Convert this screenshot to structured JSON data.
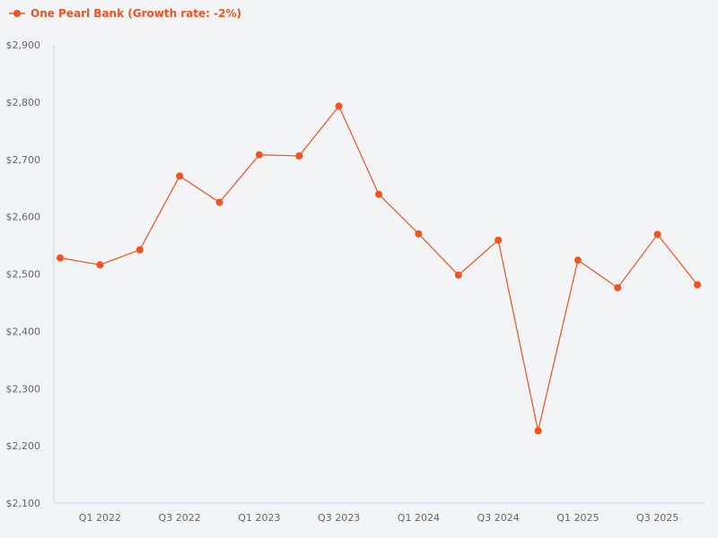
{
  "legend": {
    "label": "One Pearl Bank (Growth rate: -2%)",
    "color": "#f4511e"
  },
  "chart_data": {
    "type": "line",
    "title": "",
    "xlabel": "",
    "ylabel": "",
    "categories": [
      "Q4 2021",
      "Q1 2022",
      "Q2 2022",
      "Q3 2022",
      "Q4 2022",
      "Q1 2023",
      "Q2 2023",
      "Q3 2023",
      "Q4 2023",
      "Q1 2024",
      "Q2 2024",
      "Q3 2024",
      "Q4 2024",
      "Q1 2025",
      "Q2 2025",
      "Q3 2025",
      "Q4 2025"
    ],
    "x_tick_labels": [
      "Q1 2022",
      "Q3 2022",
      "Q1 2023",
      "Q3 2023",
      "Q1 2024",
      "Q3 2024",
      "Q1 2025",
      "Q3 2025"
    ],
    "y_tick_labels": [
      "$2,100",
      "$2,200",
      "$2,300",
      "$2,400",
      "$2,500",
      "$2,600",
      "$2,700",
      "$2,800",
      "$2,900"
    ],
    "ylim": [
      2100,
      2900
    ],
    "grid": false,
    "legend_position": "top-left",
    "series": [
      {
        "name": "One Pearl Bank (Growth rate: -2%)",
        "color": "#f4511e",
        "values": [
          2528,
          2516,
          2542,
          2671,
          2625,
          2708,
          2706,
          2793,
          2639,
          2570,
          2498,
          2559,
          2226,
          2524,
          2476,
          2569,
          2481
        ]
      }
    ]
  }
}
